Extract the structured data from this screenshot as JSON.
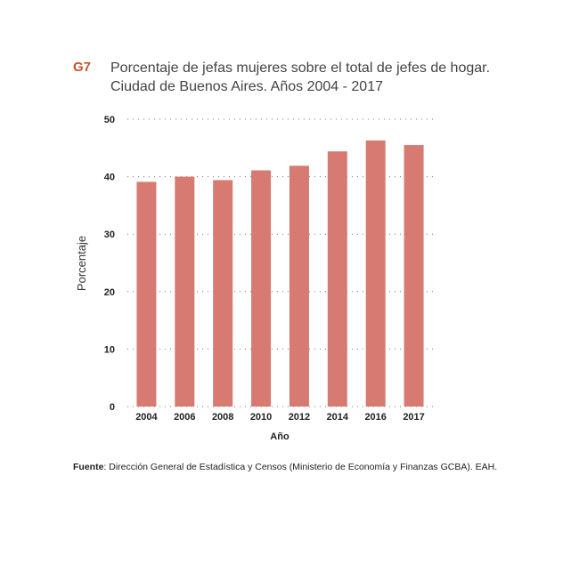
{
  "figure": {
    "label": "G7",
    "title_line1": "Porcentaje de jefas mujeres sobre el total de jefes de hogar.",
    "title_line2": "Ciudad de Buenos Aires. Años 2004 - 2017"
  },
  "chart_data": {
    "type": "bar",
    "title": "Porcentaje de jefas mujeres sobre el total de jefes de hogar. Ciudad de Buenos Aires. Años 2004 - 2017",
    "categories": [
      "2004",
      "2006",
      "2008",
      "2010",
      "2012",
      "2014",
      "2016",
      "2017"
    ],
    "values": [
      39.1,
      40.0,
      39.4,
      41.1,
      41.9,
      44.4,
      46.3,
      45.5
    ],
    "xlabel": "Año",
    "ylabel": "Porcentaje",
    "ylim": [
      0,
      50
    ],
    "yticks": [
      "0",
      "10",
      "20",
      "30",
      "40",
      "50"
    ],
    "grid": true,
    "bar_color": "#d67a72",
    "grid_color": "#777777"
  },
  "source": {
    "label": "Fuente",
    "text": ": Dirección General de Estadística y Censos (Ministerio de Economía y Finanzas GCBA). EAH."
  }
}
